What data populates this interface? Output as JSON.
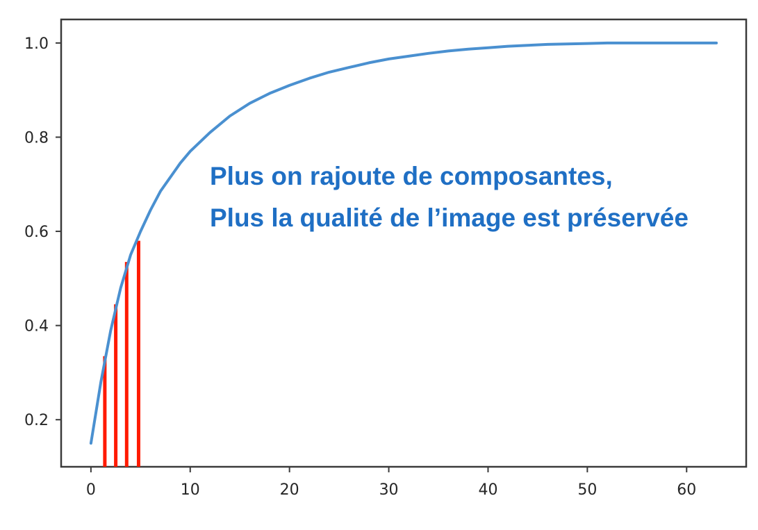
{
  "chart_data": {
    "type": "line",
    "title": "",
    "xlabel": "",
    "ylabel": "",
    "xlim": [
      -3,
      66
    ],
    "ylim": [
      0.1,
      1.05
    ],
    "x_ticks": [
      0,
      10,
      20,
      30,
      40,
      50,
      60
    ],
    "y_ticks": [
      0.2,
      0.4,
      0.6,
      0.8,
      1.0
    ],
    "x_tick_labels": [
      "0",
      "10",
      "20",
      "30",
      "40",
      "50",
      "60"
    ],
    "y_tick_labels": [
      "0.2",
      "0.4",
      "0.6",
      "0.8",
      "1.0"
    ],
    "grid": false,
    "legend": "none",
    "series": [
      {
        "color": "#4a90d0",
        "x": [
          0,
          1,
          2,
          3,
          4,
          5,
          6,
          7,
          8,
          9,
          10,
          12,
          14,
          16,
          18,
          20,
          22,
          24,
          26,
          28,
          30,
          32,
          34,
          36,
          38,
          40,
          42,
          44,
          46,
          48,
          50,
          52,
          54,
          56,
          58,
          60,
          62,
          63
        ],
        "y": [
          0.15,
          0.28,
          0.39,
          0.48,
          0.55,
          0.6,
          0.645,
          0.685,
          0.715,
          0.745,
          0.77,
          0.81,
          0.845,
          0.872,
          0.893,
          0.91,
          0.925,
          0.938,
          0.948,
          0.958,
          0.966,
          0.972,
          0.978,
          0.983,
          0.987,
          0.99,
          0.993,
          0.995,
          0.997,
          0.998,
          0.999,
          1.0,
          1.0,
          1.0,
          1.0,
          1.0,
          1.0,
          1.0
        ]
      }
    ],
    "markers": {
      "color": "#ff1a00",
      "x": [
        1.4,
        2.5,
        3.6,
        4.8
      ],
      "y": [
        0.335,
        0.445,
        0.535,
        0.58
      ]
    },
    "annotations": [
      "Plus on rajoute de composantes,",
      "Plus la qualité de l’image est préservée"
    ],
    "annotation_color": "#1f6fc4"
  }
}
